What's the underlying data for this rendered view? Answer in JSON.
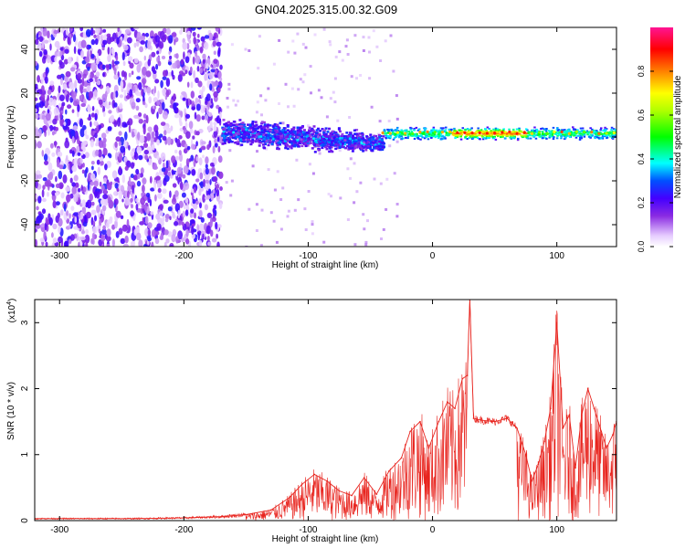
{
  "figure": {
    "title": "GN04.2025.315.00.32.G09"
  },
  "chart_data": [
    {
      "type": "heatmap",
      "xlabel": "Height of straight line (km)",
      "ylabel": "Frequency (Hz)",
      "xlim": [
        -320,
        148
      ],
      "ylim": [
        -50,
        50
      ],
      "x_ticks": [
        -300,
        -200,
        -100,
        0,
        100
      ],
      "x_tick_labels": [
        "-300",
        "-200",
        "-100",
        "0",
        "100"
      ],
      "y_ticks": [
        -40,
        -20,
        0,
        20,
        40
      ],
      "y_tick_labels": [
        "-40",
        "-20",
        "0",
        "20",
        "40"
      ],
      "colorbar": {
        "label": "Normalized spectral amplitude",
        "range": [
          0,
          1
        ],
        "ticks": [
          0.0,
          0.2,
          0.4,
          0.6,
          0.8
        ],
        "tick_labels": [
          "0.0",
          "0.2",
          "0.4",
          "0.6",
          "0.8"
        ],
        "colors": [
          "#e6ccff",
          "#8a2be2",
          "#5000ff",
          "#0000ff",
          "#00ffff",
          "#00ff00",
          "#ffff00",
          "#ff8000",
          "#ff0000",
          "#ff1493"
        ]
      },
      "regions": [
        {
          "x_range": [
            -320,
            -170
          ],
          "freq_range": [
            -50,
            50
          ],
          "level": 0.12,
          "pattern": "scattered"
        },
        {
          "x_range": [
            -170,
            -40
          ],
          "freq_center": 0,
          "freq_halfwidth": 8,
          "level": 0.35,
          "pattern": "broad band"
        },
        {
          "x_range": [
            -40,
            148
          ],
          "freq_center": 2,
          "freq_halfwidth": 3,
          "level": 0.85,
          "pattern": "narrow line"
        }
      ]
    },
    {
      "type": "line",
      "xlabel": "Height of straight line (km)",
      "ylabel": "SNR (10 * v/v)",
      "y_scale_label": "(x10",
      "y_scale_exponent": "4",
      "xlim": [
        -320,
        148
      ],
      "ylim": [
        0,
        3.35
      ],
      "x_ticks": [
        -300,
        -200,
        -100,
        0,
        100
      ],
      "x_tick_labels": [
        "-300",
        "-200",
        "-100",
        "0",
        "100"
      ],
      "y_ticks": [
        0,
        1,
        2,
        3
      ],
      "y_tick_labels": [
        "0",
        "1",
        "2",
        "3"
      ],
      "series_color": "#e8241e",
      "x": [
        -320,
        -280,
        -240,
        -200,
        -170,
        -150,
        -130,
        -115,
        -105,
        -95,
        -85,
        -75,
        -65,
        -55,
        -45,
        -35,
        -25,
        -18,
        -10,
        -3,
        5,
        12,
        18,
        24,
        28,
        30,
        33,
        40,
        50,
        60,
        68,
        75,
        80,
        85,
        90,
        95,
        100,
        105,
        110,
        115,
        120,
        125,
        130,
        135,
        140,
        145,
        148
      ],
      "y": [
        0.03,
        0.03,
        0.03,
        0.04,
        0.06,
        0.09,
        0.16,
        0.35,
        0.55,
        0.7,
        0.6,
        0.45,
        0.38,
        0.65,
        0.4,
        0.75,
        0.95,
        1.35,
        1.5,
        1.1,
        1.5,
        1.8,
        1.7,
        2.15,
        2.2,
        3.35,
        1.55,
        1.52,
        1.5,
        1.55,
        1.4,
        1.0,
        0.6,
        0.85,
        1.2,
        1.7,
        3.0,
        1.4,
        1.6,
        0.8,
        1.6,
        2.0,
        1.7,
        1.4,
        1.1,
        1.3,
        1.5
      ]
    }
  ]
}
